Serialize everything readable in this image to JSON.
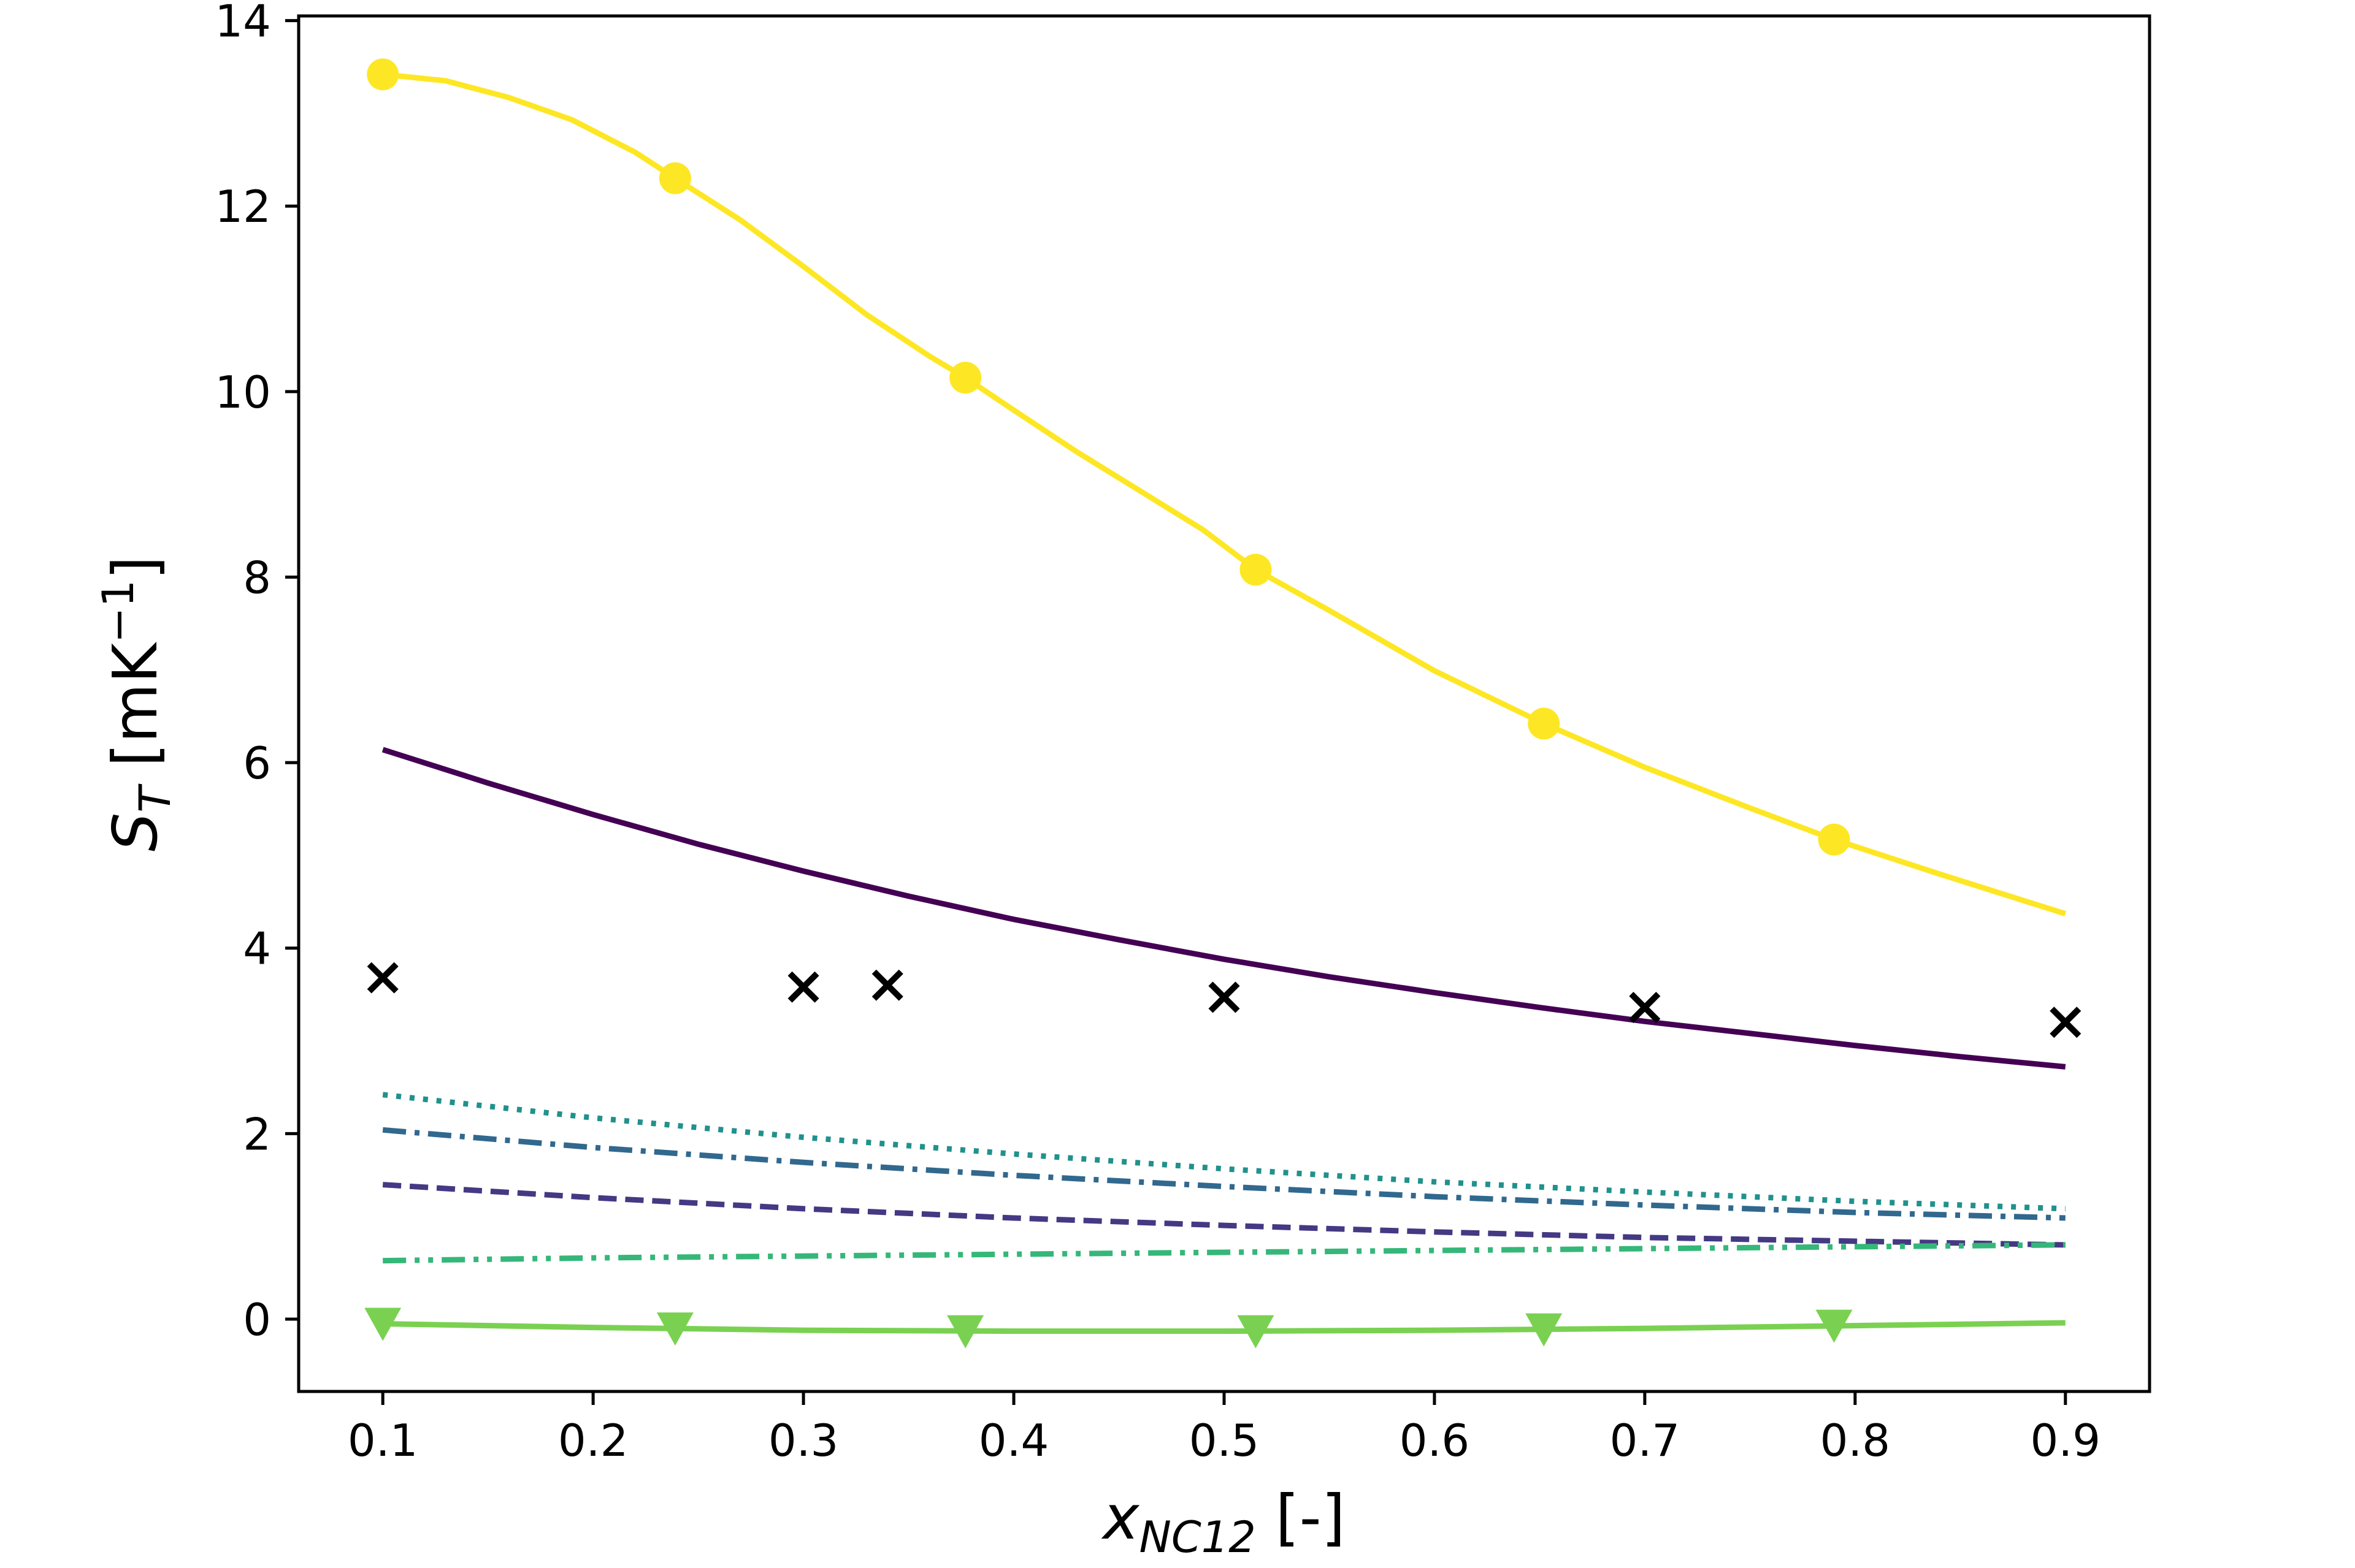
{
  "chart_data": {
    "type": "line",
    "xlabel": {
      "main": "x",
      "sub": "NC12",
      "rest": " [-]"
    },
    "ylabel": {
      "main": "S",
      "sub": "T",
      "rest": " [mK",
      "sup": "−1",
      "close": "]"
    },
    "xlim": [
      0.06,
      0.94
    ],
    "ylim": [
      -0.78,
      14.05
    ],
    "x_ticks": [
      "0.1",
      "0.2",
      "0.3",
      "0.4",
      "0.5",
      "0.6",
      "0.7",
      "0.8",
      "0.9"
    ],
    "y_ticks": [
      "0",
      "2",
      "4",
      "6",
      "8",
      "10",
      "12",
      "14"
    ],
    "grid": false,
    "series": [
      {
        "style": "solid",
        "color": "#fde725",
        "marker": "circle",
        "x": [
          0.1,
          0.13,
          0.16,
          0.19,
          0.22,
          0.239,
          0.27,
          0.3,
          0.33,
          0.36,
          0.377,
          0.4,
          0.43,
          0.46,
          0.49,
          0.515,
          0.55,
          0.6,
          0.652,
          0.7,
          0.75,
          0.79,
          0.84,
          0.9
        ],
        "y": [
          13.42,
          13.35,
          13.17,
          12.93,
          12.58,
          12.3,
          11.85,
          11.35,
          10.83,
          10.38,
          10.15,
          9.8,
          9.35,
          8.93,
          8.51,
          8.08,
          7.64,
          6.99,
          6.42,
          5.95,
          5.51,
          5.17,
          4.8,
          4.37
        ],
        "marker_x": [
          0.1,
          0.239,
          0.377,
          0.515,
          0.652,
          0.79
        ],
        "marker_y": [
          13.42,
          12.3,
          10.15,
          8.08,
          6.42,
          5.17
        ]
      },
      {
        "style": "solid",
        "color": "#440154",
        "x": [
          0.1,
          0.15,
          0.2,
          0.25,
          0.3,
          0.35,
          0.4,
          0.45,
          0.5,
          0.55,
          0.6,
          0.65,
          0.7,
          0.75,
          0.8,
          0.85,
          0.9
        ],
        "y": [
          6.14,
          5.78,
          5.44,
          5.12,
          4.83,
          4.56,
          4.31,
          4.09,
          3.88,
          3.69,
          3.52,
          3.36,
          3.21,
          3.08,
          2.95,
          2.83,
          2.72
        ]
      },
      {
        "style": "dotted",
        "color": "#21918c",
        "x": [
          0.1,
          0.2,
          0.3,
          0.4,
          0.5,
          0.6,
          0.7,
          0.8,
          0.9
        ],
        "y": [
          2.42,
          2.17,
          1.96,
          1.78,
          1.62,
          1.48,
          1.37,
          1.27,
          1.19
        ]
      },
      {
        "style": "dashdot",
        "color": "#31688e",
        "x": [
          0.1,
          0.2,
          0.3,
          0.4,
          0.5,
          0.6,
          0.7,
          0.8,
          0.9
        ],
        "y": [
          2.04,
          1.85,
          1.69,
          1.55,
          1.43,
          1.32,
          1.23,
          1.15,
          1.09
        ]
      },
      {
        "style": "dashed",
        "color": "#443983",
        "x": [
          0.1,
          0.2,
          0.3,
          0.4,
          0.5,
          0.6,
          0.7,
          0.8,
          0.9
        ],
        "y": [
          1.45,
          1.31,
          1.19,
          1.09,
          1.01,
          0.94,
          0.88,
          0.84,
          0.8
        ]
      },
      {
        "style": "dashdotdot",
        "color": "#35b779",
        "x": [
          0.1,
          0.2,
          0.3,
          0.4,
          0.5,
          0.6,
          0.7,
          0.8,
          0.9
        ],
        "y": [
          0.63,
          0.66,
          0.68,
          0.7,
          0.72,
          0.74,
          0.76,
          0.78,
          0.8
        ]
      },
      {
        "style": "solid",
        "color": "#7ad151",
        "marker": "triangle-down",
        "x": [
          0.1,
          0.2,
          0.3,
          0.4,
          0.5,
          0.6,
          0.7,
          0.8,
          0.9
        ],
        "y": [
          -0.05,
          -0.09,
          -0.12,
          -0.13,
          -0.13,
          -0.12,
          -0.1,
          -0.07,
          -0.04
        ],
        "marker_x": [
          0.1,
          0.239,
          0.377,
          0.515,
          0.652,
          0.79
        ],
        "marker_y": [
          -0.05,
          -0.1,
          -0.13,
          -0.13,
          -0.11,
          -0.07
        ]
      },
      {
        "style": "none",
        "color": "#000000",
        "marker": "x",
        "x": [
          0.1,
          0.3,
          0.34,
          0.5,
          0.7,
          0.9
        ],
        "y": [
          3.68,
          3.58,
          3.6,
          3.47,
          3.36,
          3.2
        ]
      }
    ]
  }
}
